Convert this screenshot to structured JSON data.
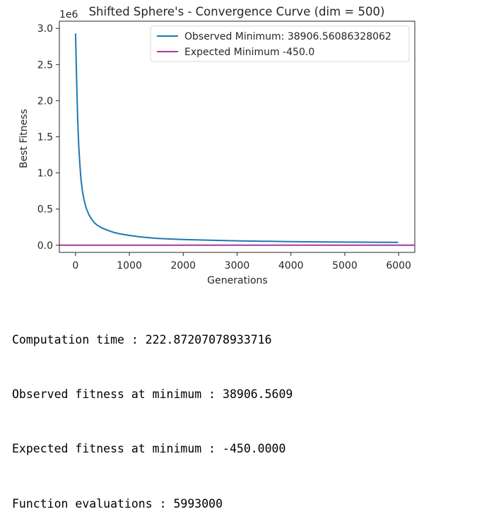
{
  "chart_data": {
    "type": "line",
    "title": "Shifted Sphere's - Convergence Curve (dim = 500)",
    "xlabel": "Generations",
    "ylabel": "Best Fitness",
    "y_scale_label": "1e6",
    "xlim": [
      -300,
      6300
    ],
    "ylim": [
      -0.1,
      3.1
    ],
    "x_ticks": [
      0,
      1000,
      2000,
      3000,
      4000,
      5000,
      6000
    ],
    "y_ticks": [
      0.0,
      0.5,
      1.0,
      1.5,
      2.0,
      2.5,
      3.0
    ],
    "y_tick_labels": [
      "0.0",
      "0.5",
      "1.0",
      "1.5",
      "2.0",
      "2.5",
      "3.0"
    ],
    "legend_position": "top-right",
    "series": [
      {
        "name": "Observed Minimum: 38906.56086328062",
        "color": "#1f77b4",
        "x": [
          0,
          20,
          40,
          60,
          80,
          100,
          130,
          160,
          200,
          250,
          300,
          350,
          400,
          450,
          500,
          600,
          700,
          800,
          1000,
          1200,
          1500,
          2000,
          2500,
          3000,
          3500,
          4000,
          4500,
          5000,
          5500,
          5993
        ],
        "y": [
          2.93,
          2.3,
          1.75,
          1.38,
          1.12,
          0.92,
          0.74,
          0.62,
          0.51,
          0.42,
          0.36,
          0.31,
          0.28,
          0.255,
          0.235,
          0.205,
          0.18,
          0.16,
          0.135,
          0.115,
          0.095,
          0.078,
          0.068,
          0.06,
          0.055,
          0.05,
          0.046,
          0.043,
          0.041,
          0.039
        ]
      },
      {
        "name": "Expected Minimum -450.0",
        "color": "#a9399f",
        "x": [
          -300,
          6300
        ],
        "y": [
          -0.00045,
          -0.00045
        ]
      }
    ]
  },
  "output_lines": [
    "Computation time : 222.87207078933716",
    "Observed fitness at minimum : 38906.5609",
    "Expected fitness at minimum : -450.0000",
    "Function evaluations : 5993000"
  ]
}
